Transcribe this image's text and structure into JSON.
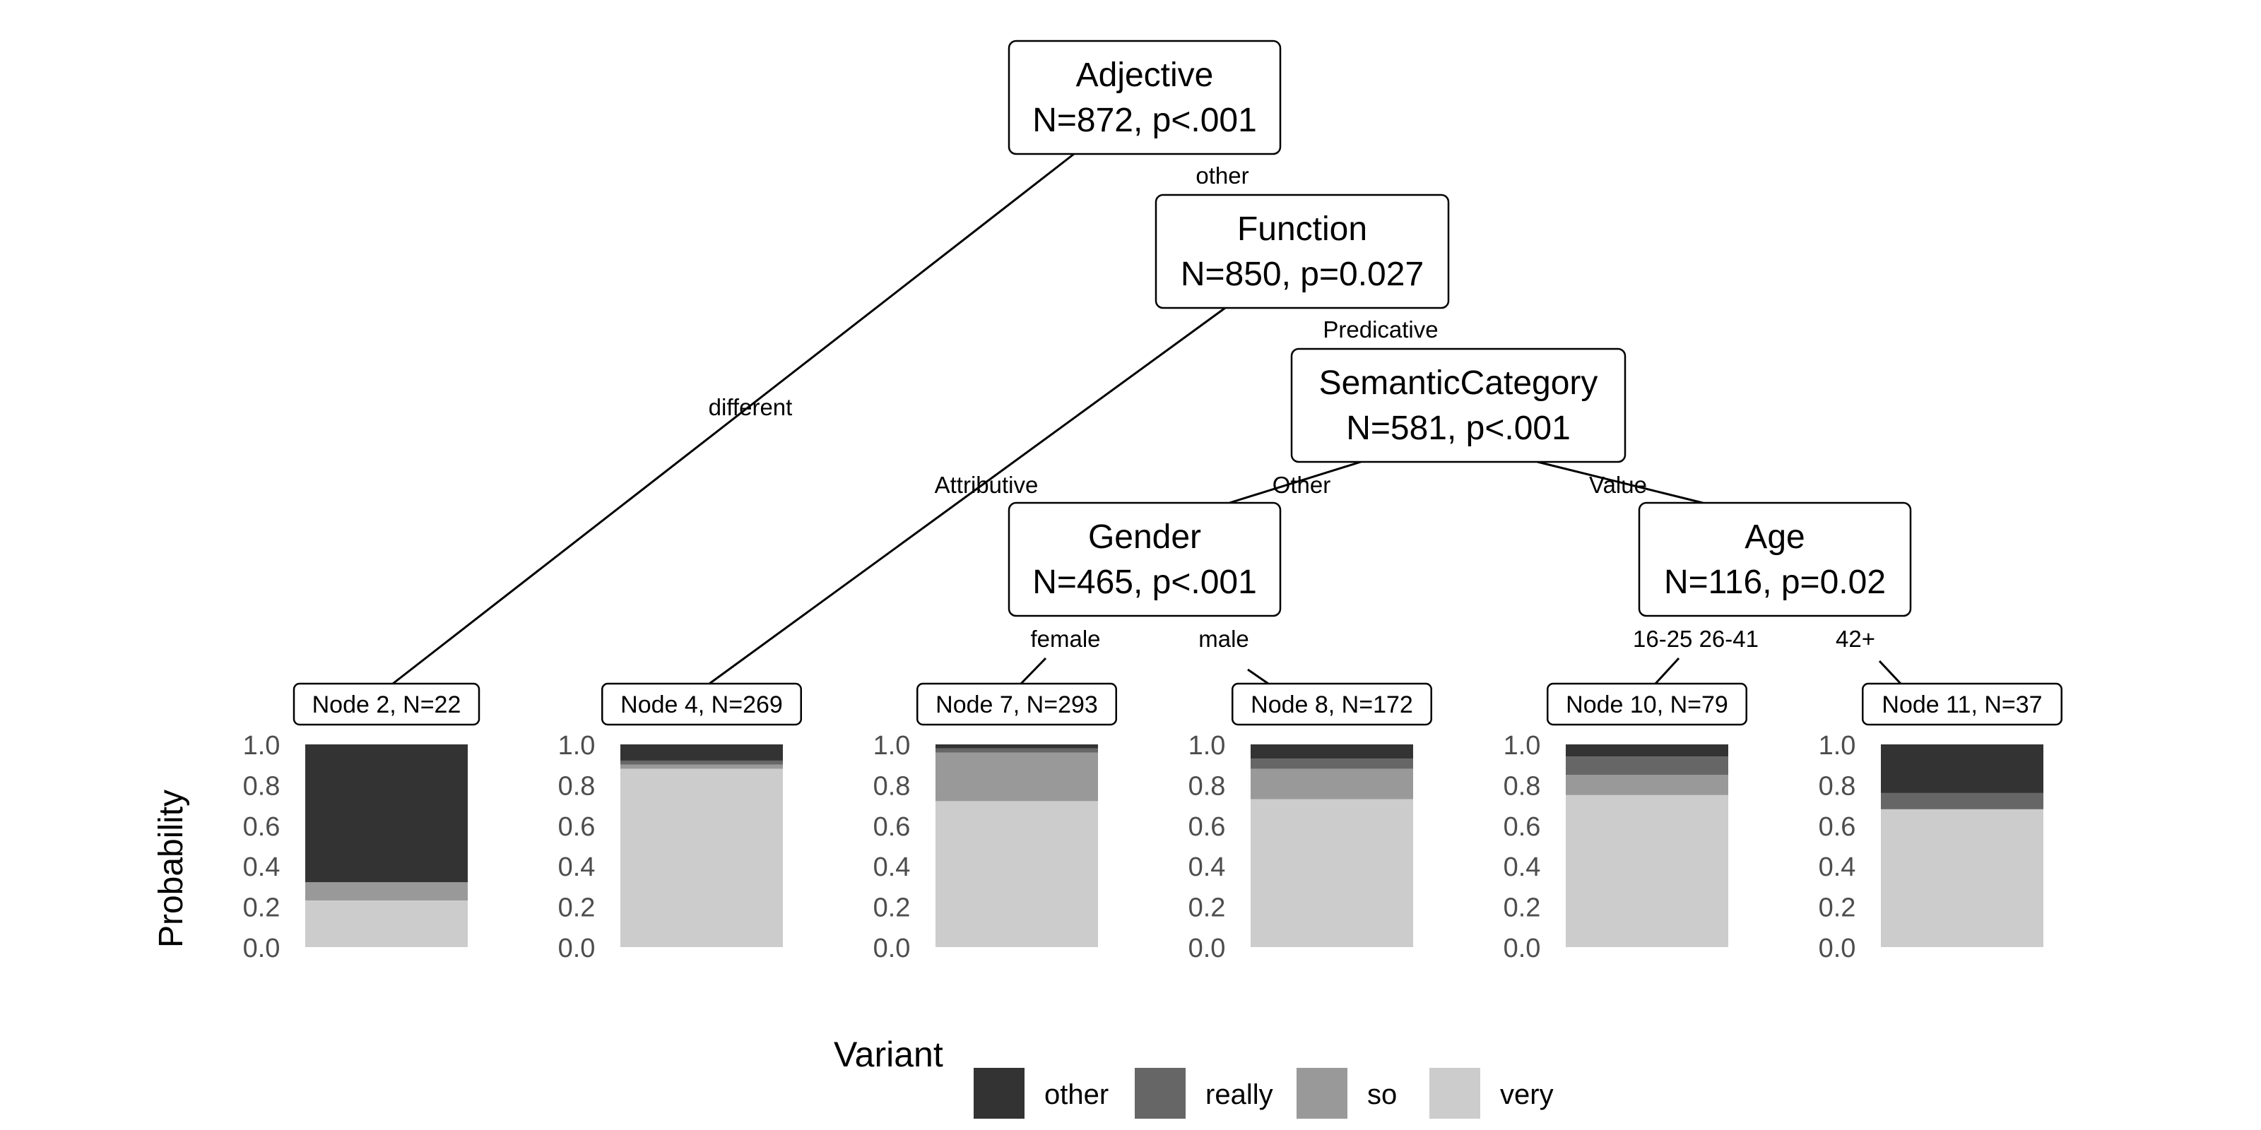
{
  "tree": {
    "inner_nodes": [
      {
        "id": "adjective",
        "title": "Adjective",
        "stats": "N=872, p<.001"
      },
      {
        "id": "function",
        "title": "Function",
        "stats": "N=850, p=0.027"
      },
      {
        "id": "semantic",
        "title": "SemanticCategory",
        "stats": "N=581, p<.001"
      },
      {
        "id": "gender",
        "title": "Gender",
        "stats": "N=465, p<.001"
      },
      {
        "id": "age",
        "title": "Age",
        "stats": "N=116, p=0.02"
      }
    ],
    "edge_labels": [
      {
        "id": "different",
        "text": "different"
      },
      {
        "id": "other",
        "text": "other"
      },
      {
        "id": "attributive",
        "text": "Attributive"
      },
      {
        "id": "predicative",
        "text": "Predicative"
      },
      {
        "id": "sem-other",
        "text": "Other"
      },
      {
        "id": "value",
        "text": "Value"
      },
      {
        "id": "female",
        "text": "female"
      },
      {
        "id": "male",
        "text": "male"
      },
      {
        "id": "age-young",
        "text": "16-25 26-41"
      },
      {
        "id": "age-old",
        "text": "42+"
      }
    ]
  },
  "chart_data": {
    "type": "bar",
    "ylabel": "Probability",
    "ylim": [
      0,
      1
    ],
    "yticks": [
      "0.0",
      "0.2",
      "0.4",
      "0.6",
      "0.8",
      "1.0"
    ],
    "stack_order": [
      "very",
      "so",
      "really",
      "other"
    ],
    "colors": {
      "other": "#333333",
      "really": "#666666",
      "so": "#999999",
      "very": "#cccccc"
    },
    "terminal_nodes": [
      {
        "label": "Node 2, N=22",
        "values": {
          "very": 0.23,
          "so": 0.09,
          "really": 0.0,
          "other": 0.68
        }
      },
      {
        "label": "Node 4, N=269",
        "values": {
          "very": 0.88,
          "so": 0.02,
          "really": 0.02,
          "other": 0.08
        }
      },
      {
        "label": "Node 7, N=293",
        "values": {
          "very": 0.72,
          "so": 0.24,
          "really": 0.02,
          "other": 0.02
        }
      },
      {
        "label": "Node 8, N=172",
        "values": {
          "very": 0.73,
          "so": 0.15,
          "really": 0.05,
          "other": 0.07
        }
      },
      {
        "label": "Node 10, N=79",
        "values": {
          "very": 0.75,
          "so": 0.1,
          "really": 0.09,
          "other": 0.06
        }
      },
      {
        "label": "Node 11, N=37",
        "values": {
          "very": 0.68,
          "so": 0.0,
          "really": 0.08,
          "other": 0.24
        }
      }
    ],
    "legend": {
      "title": "Variant",
      "position": "bottom",
      "entries": [
        "other",
        "really",
        "so",
        "very"
      ]
    }
  }
}
